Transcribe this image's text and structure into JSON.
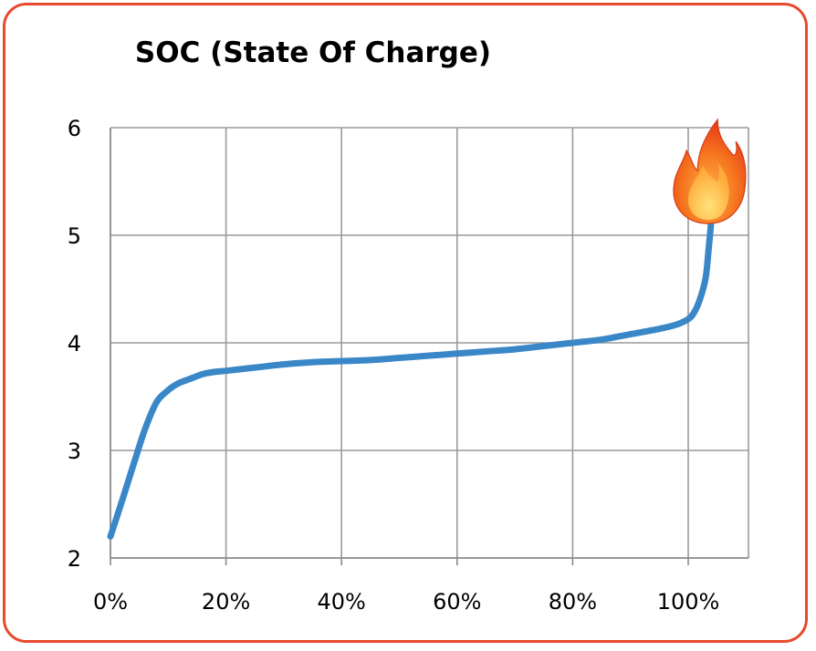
{
  "chart_data": {
    "type": "line",
    "title": "SOC (State Of Charge)",
    "xlabel": "",
    "ylabel": "",
    "xlim": [
      0,
      110
    ],
    "ylim": [
      2,
      6
    ],
    "x_ticks": [
      {
        "value": 0,
        "label": "0%"
      },
      {
        "value": 20,
        "label": "20%"
      },
      {
        "value": 40,
        "label": "40%"
      },
      {
        "value": 60,
        "label": "60%"
      },
      {
        "value": 80,
        "label": "80%"
      },
      {
        "value": 100,
        "label": "100%"
      }
    ],
    "y_ticks": [
      {
        "value": 2,
        "label": "2"
      },
      {
        "value": 3,
        "label": "3"
      },
      {
        "value": 4,
        "label": "4"
      },
      {
        "value": 5,
        "label": "5"
      },
      {
        "value": 6,
        "label": "6"
      }
    ],
    "grid": true,
    "series": [
      {
        "color": "#3a87c8",
        "x": [
          0,
          2,
          4,
          6,
          8,
          10,
          11,
          12,
          13,
          14,
          16,
          18,
          20,
          25,
          30,
          35,
          40,
          45,
          50,
          55,
          60,
          65,
          70,
          75,
          80,
          85,
          90,
          95,
          98,
          100,
          101,
          102,
          103,
          103.5,
          104,
          104.3
        ],
        "y": [
          2.2,
          2.53,
          2.87,
          3.2,
          3.45,
          3.56,
          3.6,
          3.63,
          3.65,
          3.67,
          3.71,
          3.73,
          3.74,
          3.77,
          3.8,
          3.82,
          3.83,
          3.84,
          3.86,
          3.88,
          3.9,
          3.92,
          3.94,
          3.97,
          4.0,
          4.03,
          4.08,
          4.13,
          4.17,
          4.22,
          4.28,
          4.4,
          4.6,
          4.85,
          5.15,
          5.42
        ]
      }
    ],
    "annotations": [
      {
        "icon": "flame-icon",
        "x": 103.5,
        "y": 5.55
      }
    ]
  }
}
